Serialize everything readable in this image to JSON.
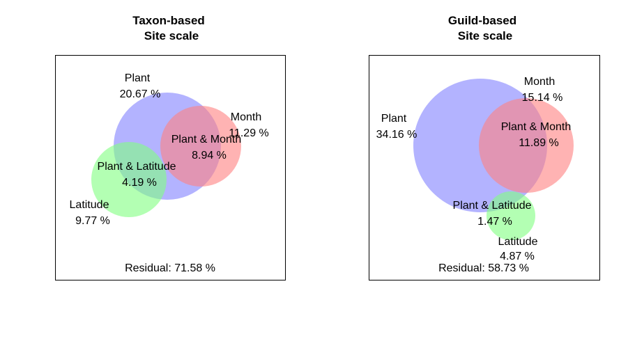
{
  "colors": {
    "plant": "#8080ff",
    "month": "#ff8080",
    "latitude": "#80ff80",
    "border": "#000000"
  },
  "panels": [
    {
      "title_line1": "Taxon-based",
      "title_line2": "Site scale",
      "plant_name": "Plant",
      "plant_value": "20.67 %",
      "month_name": "Month",
      "month_value": "11.29 %",
      "plant_month_name": "Plant & Month",
      "plant_month_value": "8.94 %",
      "plant_latitude_name": "Plant & Latitude",
      "plant_latitude_value": "4.19 %",
      "latitude_name": "Latitude",
      "latitude_value": "9.77 %",
      "residual": "Residual:  71.58 %"
    },
    {
      "title_line1": "Guild-based",
      "title_line2": "Site scale",
      "plant_name": "Plant",
      "plant_value": "34.16 %",
      "month_name": "Month",
      "month_value": "15.14 %",
      "plant_month_name": "Plant & Month",
      "plant_month_value": "11.89 %",
      "plant_latitude_name": "Plant & Latitude",
      "plant_latitude_value": "1.47 %",
      "latitude_name": "Latitude",
      "latitude_value": "4.87 %",
      "residual": "Residual:  58.73 %"
    }
  ]
}
